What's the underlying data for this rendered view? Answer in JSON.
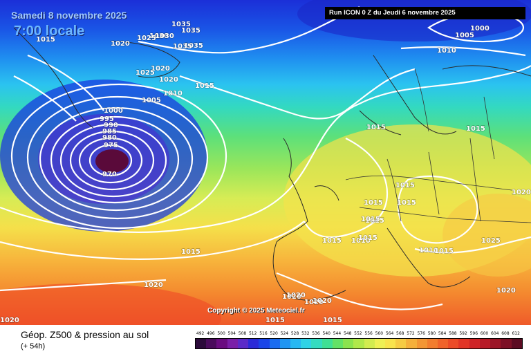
{
  "header": {
    "date": "Samedi 8 novembre 2025",
    "time": "7:00 locale",
    "run": "Run ICON 0 Z du Jeudi 6 novembre 2025"
  },
  "copyright": "Copyright © 2025 Meteociel.fr",
  "footer": {
    "product": "Géop. Z500 & pression au sol",
    "lead": "(+ 54h)"
  },
  "scale": {
    "values": [
      "492",
      "496",
      "500",
      "504",
      "508",
      "512",
      "516",
      "520",
      "524",
      "528",
      "532",
      "536",
      "540",
      "544",
      "548",
      "552",
      "556",
      "560",
      "564",
      "568",
      "572",
      "576",
      "580",
      "584",
      "588",
      "592",
      "596",
      "600",
      "604",
      "608",
      "612"
    ],
    "colors": [
      "#2b0a3a",
      "#4a0b5c",
      "#6a0c80",
      "#7a1fa8",
      "#5b2ac8",
      "#2b2ad8",
      "#1a44e8",
      "#1a6cf0",
      "#1f95f2",
      "#27b8f2",
      "#2fd3e6",
      "#34dcc0",
      "#3fe094",
      "#63e266",
      "#8be34e",
      "#b0e84a",
      "#d2ec4f",
      "#eef054",
      "#f8e34c",
      "#f6cb43",
      "#f5b03b",
      "#f39634",
      "#f27d2e",
      "#f0632a",
      "#ec4b27",
      "#e23526",
      "#cf2326",
      "#b81a27",
      "#9c1527",
      "#7d1026",
      "#5c0b22"
    ]
  },
  "pressure_labels": [
    "1035",
    "1035",
    "1030",
    "1035",
    "1025",
    "1030",
    "1035",
    "1015",
    "1020",
    "1025",
    "1020",
    "1020",
    "1015",
    "1010",
    "1005",
    "1000",
    "995",
    "990",
    "985",
    "980",
    "975",
    "970",
    "1015",
    "1020",
    "1020",
    "1020",
    "1015",
    "1015",
    "1015",
    "1015",
    "1010",
    "1015",
    "1015",
    "1015",
    "1015",
    "1010",
    "1015",
    "1020",
    "1025",
    "1015",
    "1000",
    "1005",
    "1010",
    "1015",
    "1015",
    "1020",
    "1020",
    "1020",
    "1020"
  ],
  "colors": {
    "low_core": "#5a0a3a",
    "isobar": "#ffffff",
    "run_box": "#000000"
  }
}
